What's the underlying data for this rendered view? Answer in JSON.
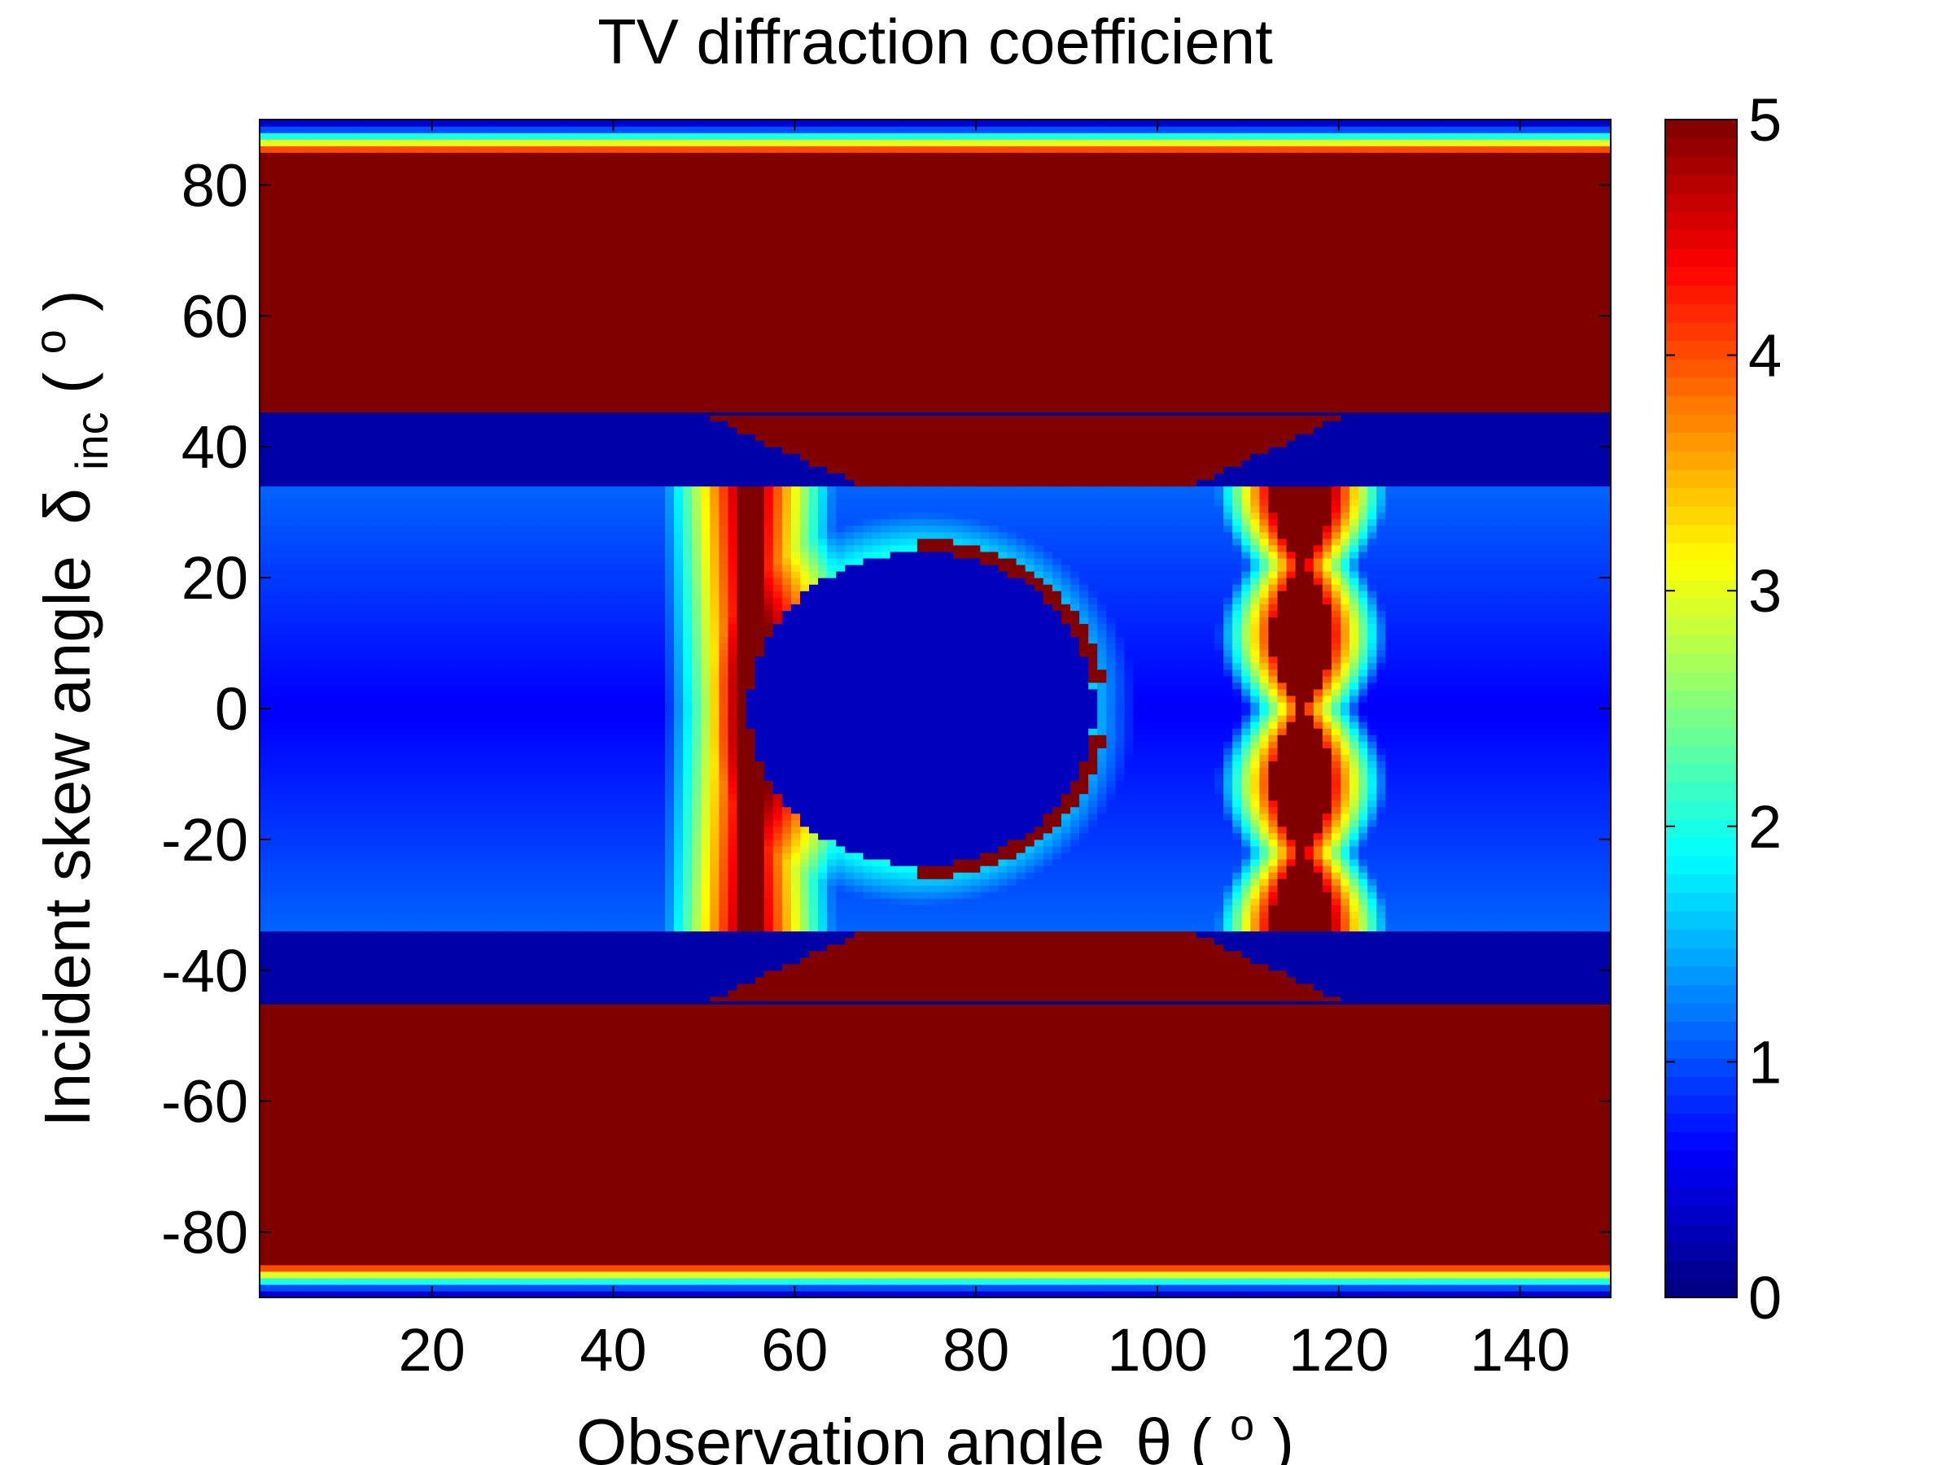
{
  "chart_data": {
    "type": "heatmap",
    "title": "TV diffraction coefficient",
    "xlabel": {
      "main": "Observation angle",
      "symbol": "θ",
      "unit_open": " (",
      "unit_sup": "o",
      "unit_close": ")"
    },
    "ylabel": {
      "main": "Incident skew angle",
      "symbol": "δ",
      "symbol_sub": "inc",
      "unit_open": " (",
      "unit_sup": "o",
      "unit_close": ")"
    },
    "xlim": [
      1,
      150
    ],
    "ylim": [
      -90,
      90
    ],
    "x_ticks": [
      20,
      40,
      60,
      80,
      100,
      120,
      140
    ],
    "x_tick_labels": [
      "20",
      "40",
      "60",
      "80",
      "100",
      "120",
      "140"
    ],
    "y_ticks": [
      -80,
      -60,
      -40,
      -20,
      0,
      20,
      40,
      60,
      80
    ],
    "y_tick_labels": [
      "-80",
      "-60",
      "-40",
      "-20",
      "0",
      "20",
      "40",
      "60",
      "80"
    ],
    "colorbar": {
      "colormap": "jet",
      "clim": [
        0,
        5
      ],
      "ticks": [
        0,
        1,
        2,
        3,
        4,
        5
      ],
      "tick_labels": [
        "0",
        "1",
        "2",
        "3",
        "4",
        "5"
      ]
    },
    "regions": {
      "saturated_band_abs_y": [
        34,
        83
      ],
      "dark_lobe_band_abs_y": [
        34,
        45
      ],
      "separator_lines_y": [
        45,
        -45
      ],
      "central_band_abs_y": [
        0,
        33
      ],
      "vertical_ridge_x": 55,
      "pole_x": 116,
      "circle_center": [
        74,
        0
      ],
      "circle_radius_x": 19,
      "crescent_y_extent": 22
    }
  },
  "colors": {
    "jet_dark_blue": "#00008f",
    "jet_max_red": "#800000",
    "axes": "#000000",
    "background": "#ffffff"
  }
}
